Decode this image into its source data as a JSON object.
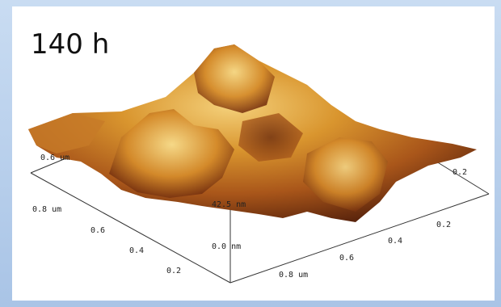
{
  "title": "140 h",
  "axis_labels": {
    "left": [
      "0.6 um",
      "0.8 um",
      "0.6",
      "0.4",
      "0.2"
    ],
    "right": [
      "0.8 um",
      "0.6",
      "0.4",
      "0.2",
      "0.2"
    ],
    "back": [
      "0.2"
    ],
    "z": [
      "42.5 nm",
      "0.0 nm"
    ]
  }
}
